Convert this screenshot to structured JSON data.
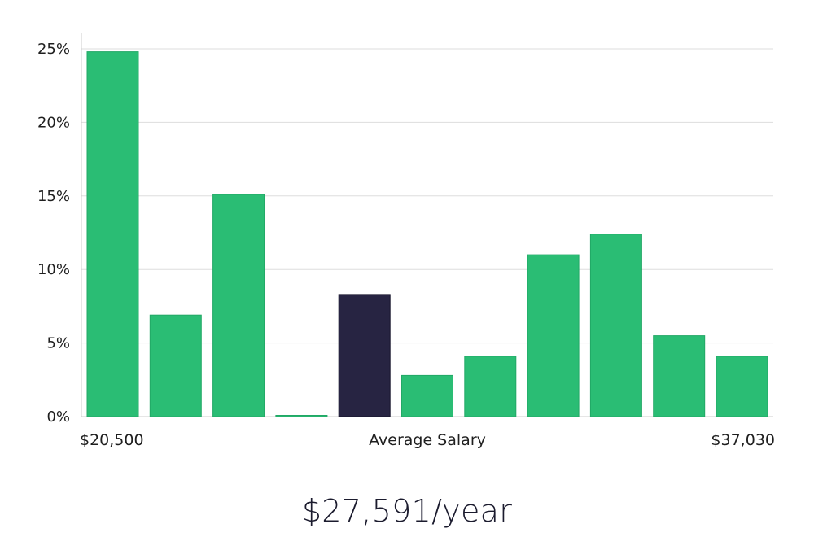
{
  "chart_data": {
    "type": "bar",
    "categories": [
      "1",
      "2",
      "3",
      "4",
      "5",
      "6",
      "7",
      "8",
      "9",
      "10",
      "11"
    ],
    "values": [
      24.8,
      6.9,
      15.1,
      0.05,
      8.3,
      2.8,
      4.1,
      11.0,
      12.4,
      5.5,
      4.1
    ],
    "highlight_index": 4,
    "ylim": [
      0,
      25
    ],
    "yticks": [
      0,
      5,
      10,
      15,
      20,
      25
    ],
    "ytick_format": "{v}%",
    "x_labels": {
      "min": "$20,500",
      "center": "Average Salary",
      "max": "$37,030"
    },
    "grid": true,
    "colors": {
      "bar": "#2abd74",
      "highlight": "#272442",
      "grid": "#dddddd",
      "axis": "#cccccc"
    }
  },
  "headline": "$27,591/year"
}
